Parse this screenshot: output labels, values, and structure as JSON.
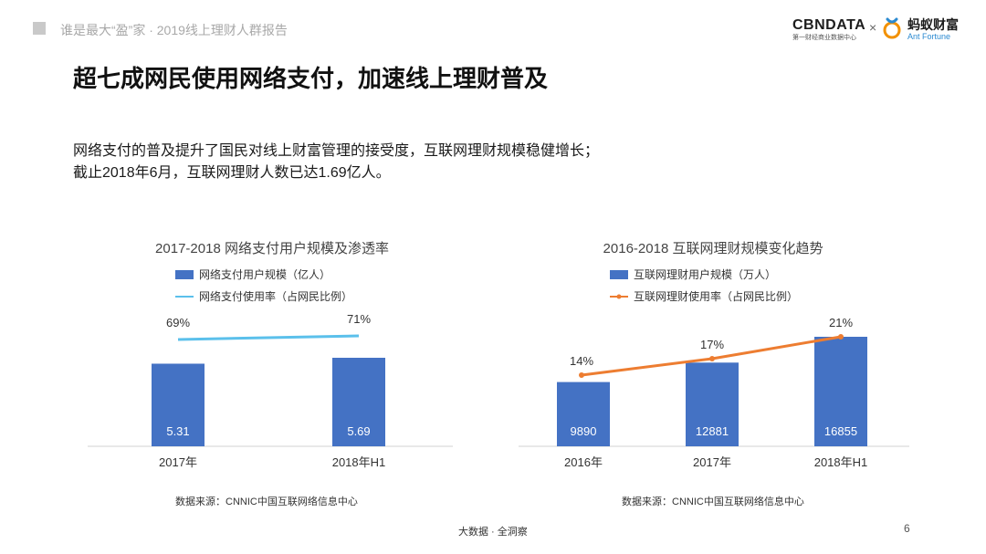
{
  "header": {
    "title": "谁是最大“盈”家 · 2019线上理财人群报告",
    "logo_cbn": "CBNDATA",
    "logo_cbn_sub": "第一财经商业数据中心",
    "logo_times": "×",
    "logo_ant_cn": "蚂蚁财富",
    "logo_ant_en": "Ant Fortune"
  },
  "main_title": "超七成网民使用网络支付，加速线上理财普及",
  "description": {
    "line1": "网络支付的普及提升了国民对线上财富管理的接受度，互联网理财规模稳健增长；",
    "line2": "截止2018年6月，互联网理财人数已达1.69亿人。"
  },
  "chart_data": [
    {
      "type": "bar",
      "title": "2017-2018 网络支付用户规模及渗透率",
      "categories": [
        "2017年",
        "2018年H1"
      ],
      "series": [
        {
          "name": "网络支付用户规模（亿人）",
          "kind": "bar",
          "values": [
            5.31,
            5.69
          ],
          "labels": [
            "5.31",
            "5.69"
          ],
          "color": "#4472c4"
        },
        {
          "name": "网络支付使用率（占网民比例）",
          "kind": "line",
          "values": [
            69,
            71
          ],
          "labels": [
            "69%",
            "71%"
          ],
          "color": "#5bc0eb"
        }
      ],
      "legend_position": "top",
      "grid": false,
      "source": "数据来源：CNNIC中国互联网络信息中心"
    },
    {
      "type": "bar",
      "title": "2016-2018 互联网理财规模变化趋势",
      "categories": [
        "2016年",
        "2017年",
        "2018年H1"
      ],
      "series": [
        {
          "name": "互联网理财用户规模（万人）",
          "kind": "bar",
          "values": [
            9890,
            12881,
            16855
          ],
          "labels": [
            "9890",
            "12881",
            "16855"
          ],
          "color": "#4472c4"
        },
        {
          "name": "互联网理财使用率（占网民比例）",
          "kind": "line",
          "values": [
            14,
            17,
            21
          ],
          "labels": [
            "14%",
            "17%",
            "21%"
          ],
          "color": "#ed7d31"
        }
      ],
      "legend_position": "top",
      "grid": false,
      "source": "数据来源：CNNIC中国互联网络信息中心"
    }
  ],
  "footer": {
    "center": "大数据 · 全洞察",
    "page": "6"
  }
}
